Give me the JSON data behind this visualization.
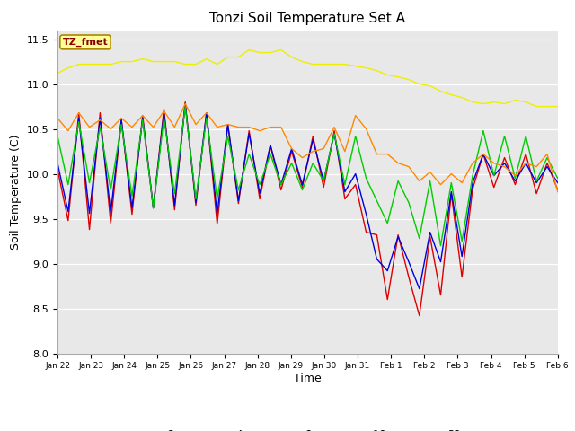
{
  "title": "Tonzi Soil Temperature Set A",
  "xlabel": "Time",
  "ylabel": "Soil Temperature (C)",
  "ylim": [
    8.0,
    11.6
  ],
  "yticks": [
    8.0,
    8.5,
    9.0,
    9.5,
    10.0,
    10.5,
    11.0,
    11.5
  ],
  "xtick_labels": [
    "Jan 22",
    "Jan 23",
    "Jan 24",
    "Jan 25",
    "Jan 26",
    "Jan 27",
    "Jan 28",
    "Jan 29",
    "Jan 30",
    "Jan 31",
    "Feb 1",
    "Feb 2",
    "Feb 3",
    "Feb 4",
    "Feb 5",
    "Feb 6"
  ],
  "colors": {
    "2cm": "#dd0000",
    "4cm": "#0000dd",
    "8cm": "#00cc00",
    "16cm": "#ff8800",
    "32cm": "#eeee00"
  },
  "series": {
    "2cm": [
      10.05,
      9.48,
      10.68,
      9.38,
      10.68,
      9.45,
      10.6,
      9.55,
      10.65,
      9.62,
      10.72,
      9.6,
      10.8,
      9.65,
      10.68,
      9.44,
      10.55,
      9.67,
      10.48,
      9.72,
      10.32,
      9.82,
      10.25,
      9.85,
      10.42,
      9.85,
      10.48,
      9.72,
      9.88,
      9.35,
      9.32,
      8.6,
      9.32,
      8.85,
      8.42,
      9.3,
      8.65,
      9.78,
      8.85,
      9.83,
      10.22,
      9.85,
      10.18,
      9.88,
      10.22,
      9.78,
      10.12,
      9.82
    ],
    "4cm": [
      10.12,
      9.58,
      10.62,
      9.56,
      10.62,
      9.57,
      10.6,
      9.62,
      10.62,
      9.62,
      10.68,
      9.65,
      10.78,
      9.68,
      10.68,
      9.55,
      10.55,
      9.7,
      10.45,
      9.78,
      10.32,
      9.88,
      10.28,
      9.88,
      10.38,
      9.92,
      10.45,
      9.8,
      10.0,
      9.55,
      9.05,
      8.92,
      9.3,
      9.02,
      8.72,
      9.35,
      9.02,
      9.8,
      9.08,
      9.9,
      10.22,
      9.98,
      10.12,
      9.92,
      10.12,
      9.9,
      10.08,
      9.9
    ],
    "8cm": [
      10.42,
      9.88,
      10.58,
      9.9,
      10.52,
      9.82,
      10.55,
      9.75,
      10.6,
      9.62,
      10.62,
      9.78,
      10.75,
      9.72,
      10.62,
      9.72,
      10.42,
      9.82,
      10.22,
      9.88,
      10.22,
      9.88,
      10.12,
      9.82,
      10.12,
      9.92,
      10.45,
      9.88,
      10.42,
      9.95,
      9.7,
      9.45,
      9.92,
      9.68,
      9.28,
      9.92,
      9.2,
      9.9,
      9.25,
      9.98,
      10.48,
      9.98,
      10.42,
      9.95,
      10.42,
      9.92,
      10.18,
      9.95
    ],
    "16cm": [
      10.62,
      10.48,
      10.68,
      10.52,
      10.6,
      10.5,
      10.62,
      10.52,
      10.65,
      10.52,
      10.7,
      10.52,
      10.78,
      10.55,
      10.68,
      10.52,
      10.55,
      10.52,
      10.52,
      10.48,
      10.52,
      10.52,
      10.28,
      10.18,
      10.25,
      10.28,
      10.52,
      10.25,
      10.65,
      10.5,
      10.22,
      10.22,
      10.12,
      10.08,
      9.92,
      10.02,
      9.88,
      10.0,
      9.9,
      10.12,
      10.22,
      10.12,
      10.08,
      9.98,
      10.12,
      10.08,
      10.22,
      9.8
    ],
    "32cm": [
      11.12,
      11.18,
      11.22,
      11.22,
      11.22,
      11.22,
      11.25,
      11.25,
      11.28,
      11.25,
      11.25,
      11.25,
      11.22,
      11.22,
      11.28,
      11.22,
      11.3,
      11.3,
      11.38,
      11.35,
      11.35,
      11.38,
      11.3,
      11.25,
      11.22,
      11.22,
      11.22,
      11.22,
      11.2,
      11.18,
      11.15,
      11.1,
      11.08,
      11.05,
      11.0,
      10.98,
      10.92,
      10.88,
      10.85,
      10.8,
      10.78,
      10.8,
      10.78,
      10.82,
      10.8,
      10.75,
      10.75,
      10.75
    ]
  }
}
